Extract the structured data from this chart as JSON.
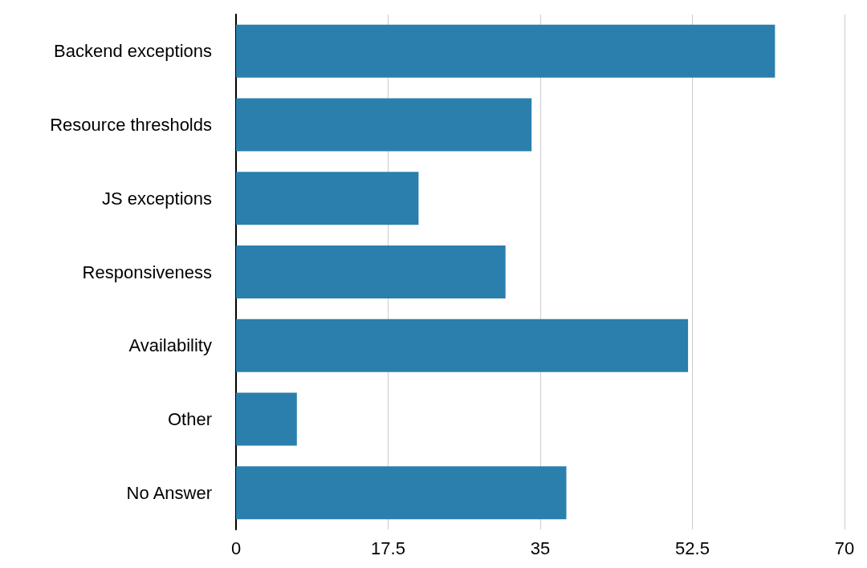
{
  "chart_data": {
    "type": "bar",
    "orientation": "horizontal",
    "categories": [
      "Backend exceptions",
      "Resource thresholds",
      "JS exceptions",
      "Responsiveness",
      "Availability",
      "Other",
      "No Answer"
    ],
    "values": [
      62,
      34,
      21,
      31,
      52,
      7,
      38
    ],
    "color": "#2a7fad",
    "xlim": [
      0,
      70
    ],
    "xticks": [
      0,
      17.5,
      35,
      52.5,
      70
    ],
    "grid": "x"
  }
}
